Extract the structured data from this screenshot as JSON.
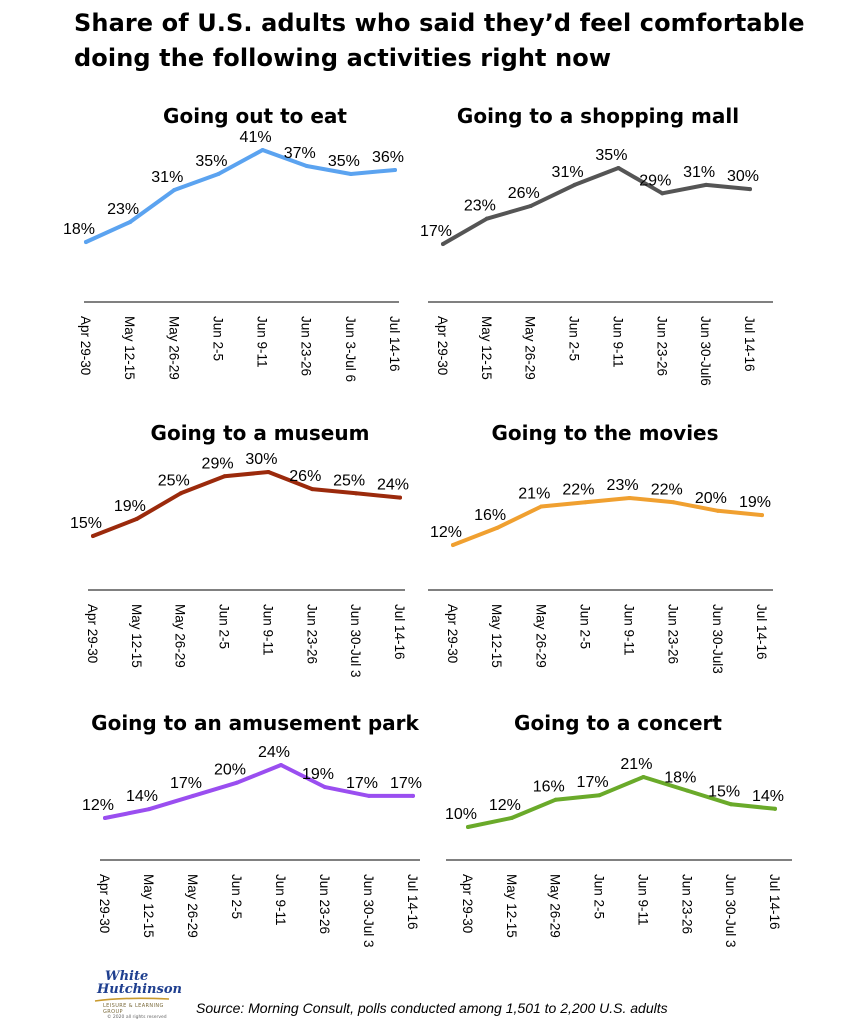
{
  "title_line1": "Share of U.S. adults who said they’d feel comfortable",
  "title_line2": "doing the following activities right now",
  "source": "Source: Morning Consult, polls conducted among 1,501 to 2,200 U.S. adults",
  "logo": {
    "line1": "White",
    "line2": "Hutchinson",
    "line3": "LEISURE & LEARNING GROUP",
    "line4": "© 2020 all rights reserved"
  },
  "chart_data": [
    {
      "type": "line",
      "title": "Going out to eat",
      "color": "#5ba3f0",
      "categories": [
        "Apr 29-30",
        "May 12-15",
        "May 26-29",
        "Jun 2-5",
        "Jun 9-11",
        "Jun 23-26",
        "Jun 3-Jul 6",
        "Jul 14-16"
      ],
      "values": [
        18,
        23,
        31,
        35,
        41,
        37,
        35,
        36
      ],
      "value_labels": [
        "18%",
        "23%",
        "31%",
        "35%",
        "41%",
        "37%",
        "35%",
        "36%"
      ]
    },
    {
      "type": "line",
      "title": "Going to a shopping mall",
      "color": "#555555",
      "categories": [
        "Apr 29-30",
        "May 12-15",
        "May 26-29",
        "Jun 2-5",
        "Jun 9-11",
        "Jun 23-26",
        "Jun 30-Jul6",
        "Jul 14-16"
      ],
      "values": [
        17,
        23,
        26,
        31,
        35,
        29,
        31,
        30
      ],
      "value_labels": [
        "17%",
        "23%",
        "26%",
        "31%",
        "35%",
        "29%",
        "31%",
        "30%"
      ]
    },
    {
      "type": "line",
      "title": "Going to a museum",
      "color": "#9b2a0c",
      "categories": [
        "Apr 29-30",
        "May 12-15",
        "May 26-29",
        "Jun 2-5",
        "Jun 9-11",
        "Jun 23-26",
        "Jun 30-Jul 3",
        "Jul 14-16"
      ],
      "values": [
        15,
        19,
        25,
        29,
        30,
        26,
        25,
        24
      ],
      "value_labels": [
        "15%",
        "19%",
        "25%",
        "29%",
        "30%",
        "26%",
        "25%",
        "24%"
      ]
    },
    {
      "type": "line",
      "title": "Going to the movies",
      "color": "#f0a030",
      "categories": [
        "Apr 29-30",
        "May 12-15",
        "May 26-29",
        "Jun 2-5",
        "Jun 9-11",
        "Jun 23-26",
        "Jun 30-Jul3",
        "Jul 14-16"
      ],
      "values": [
        12,
        16,
        21,
        22,
        23,
        22,
        20,
        19
      ],
      "value_labels": [
        "12%",
        "16%",
        "21%",
        "22%",
        "23%",
        "22%",
        "20%",
        "19%"
      ]
    },
    {
      "type": "line",
      "title": "Going to an amusement park",
      "color": "#9a4ef0",
      "categories": [
        "Apr 29-30",
        "May 12-15",
        "May 26-29",
        "Jun 2-5",
        "Jun 9-11",
        "Jun 23-26",
        "Jun 30-Jul 3",
        "Jul 14-16"
      ],
      "values": [
        12,
        14,
        17,
        20,
        24,
        19,
        17,
        17
      ],
      "value_labels": [
        "12%",
        "14%",
        "17%",
        "20%",
        "24%",
        "19%",
        "17%",
        "17%"
      ]
    },
    {
      "type": "line",
      "title": "Going to a concert",
      "color": "#6aaa2a",
      "categories": [
        "Apr 29-30",
        "May 12-15",
        "May 26-29",
        "Jun 2-5",
        "Jun 9-11",
        "Jun 23-26",
        "Jun 30-Jul 3",
        "Jul 14-16"
      ],
      "values": [
        10,
        12,
        16,
        17,
        21,
        18,
        15,
        14
      ],
      "value_labels": [
        "10%",
        "12%",
        "16%",
        "17%",
        "21%",
        "18%",
        "15%",
        "14%"
      ]
    }
  ]
}
